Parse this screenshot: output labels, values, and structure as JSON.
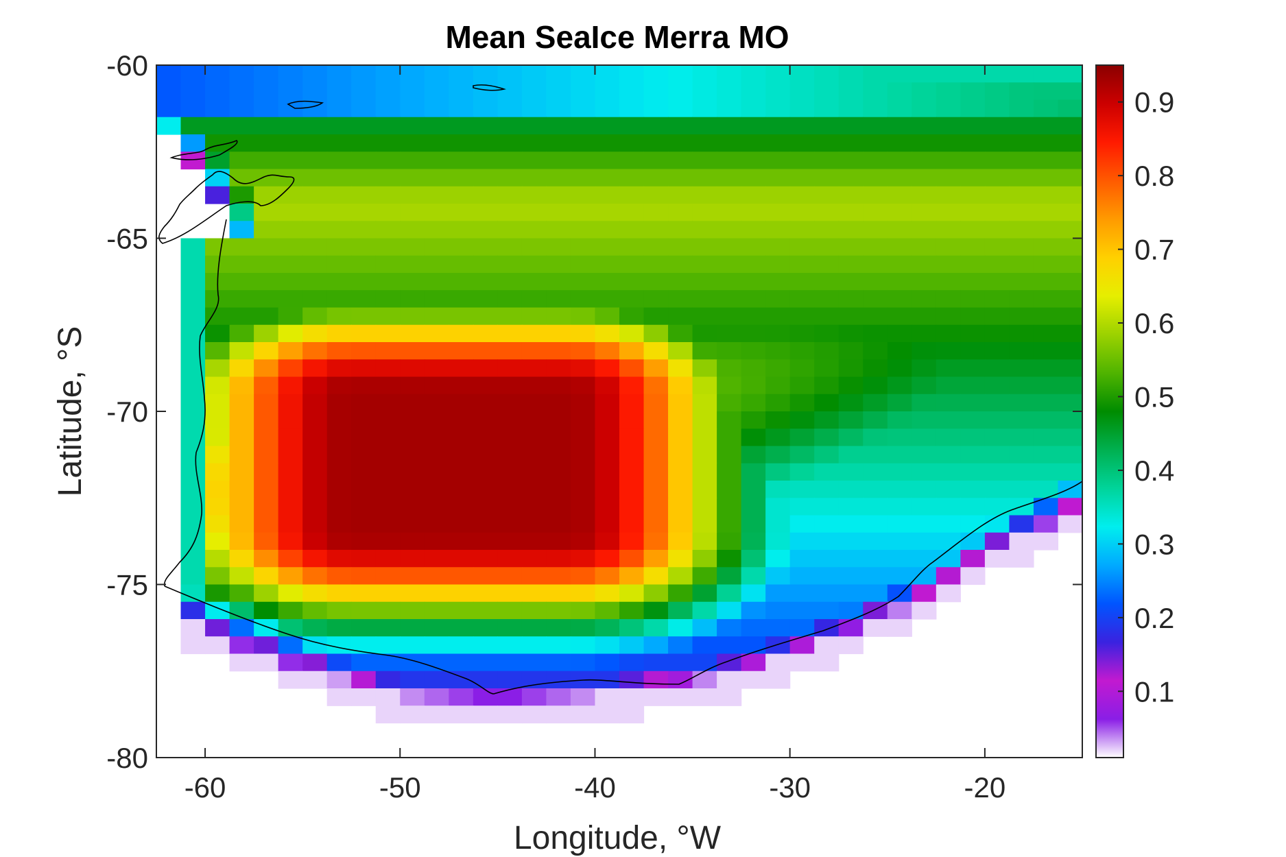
{
  "chart_data": {
    "type": "heatmap",
    "title": "Mean SeaIce Merra MO",
    "xlabel": "Longitude, °W",
    "ylabel": "Latitude, °S",
    "xlim": [
      -62.5,
      -15
    ],
    "ylim": [
      -80,
      -60
    ],
    "xticks": [
      -60,
      -50,
      -40,
      -30,
      -20
    ],
    "yticks": [
      -60,
      -65,
      -70,
      -75,
      -80
    ],
    "grid": false,
    "colorbar": {
      "position": "right",
      "range": [
        0.01,
        0.95
      ],
      "ticks": [
        0.1,
        0.2,
        0.3,
        0.4,
        0.5,
        0.6,
        0.7,
        0.8,
        0.9
      ],
      "colormap": [
        "#ffffff",
        "#8a1ee6",
        "#c21ad0",
        "#3a22e0",
        "#0055ff",
        "#00aaff",
        "#00eeee",
        "#00d49a",
        "#00b050",
        "#008c00",
        "#50b400",
        "#9cd200",
        "#e6ee00",
        "#ffd000",
        "#ff9a00",
        "#ff5a00",
        "#ff1a00",
        "#cc0000",
        "#8b0000"
      ]
    },
    "cell_size": {
      "lon": 1.25,
      "lat": 0.5
    },
    "mean_pattern": {
      "core_max": 0.93,
      "core_region": {
        "lon": [
          -58,
          -38
        ],
        "lat": [
          -77,
          -67
        ]
      },
      "northern_open_water_values": [
        0.25,
        0.45
      ],
      "eastern_band_values": [
        0.5,
        0.65
      ],
      "coastal_fringe_values": [
        0.05,
        0.3
      ]
    }
  }
}
